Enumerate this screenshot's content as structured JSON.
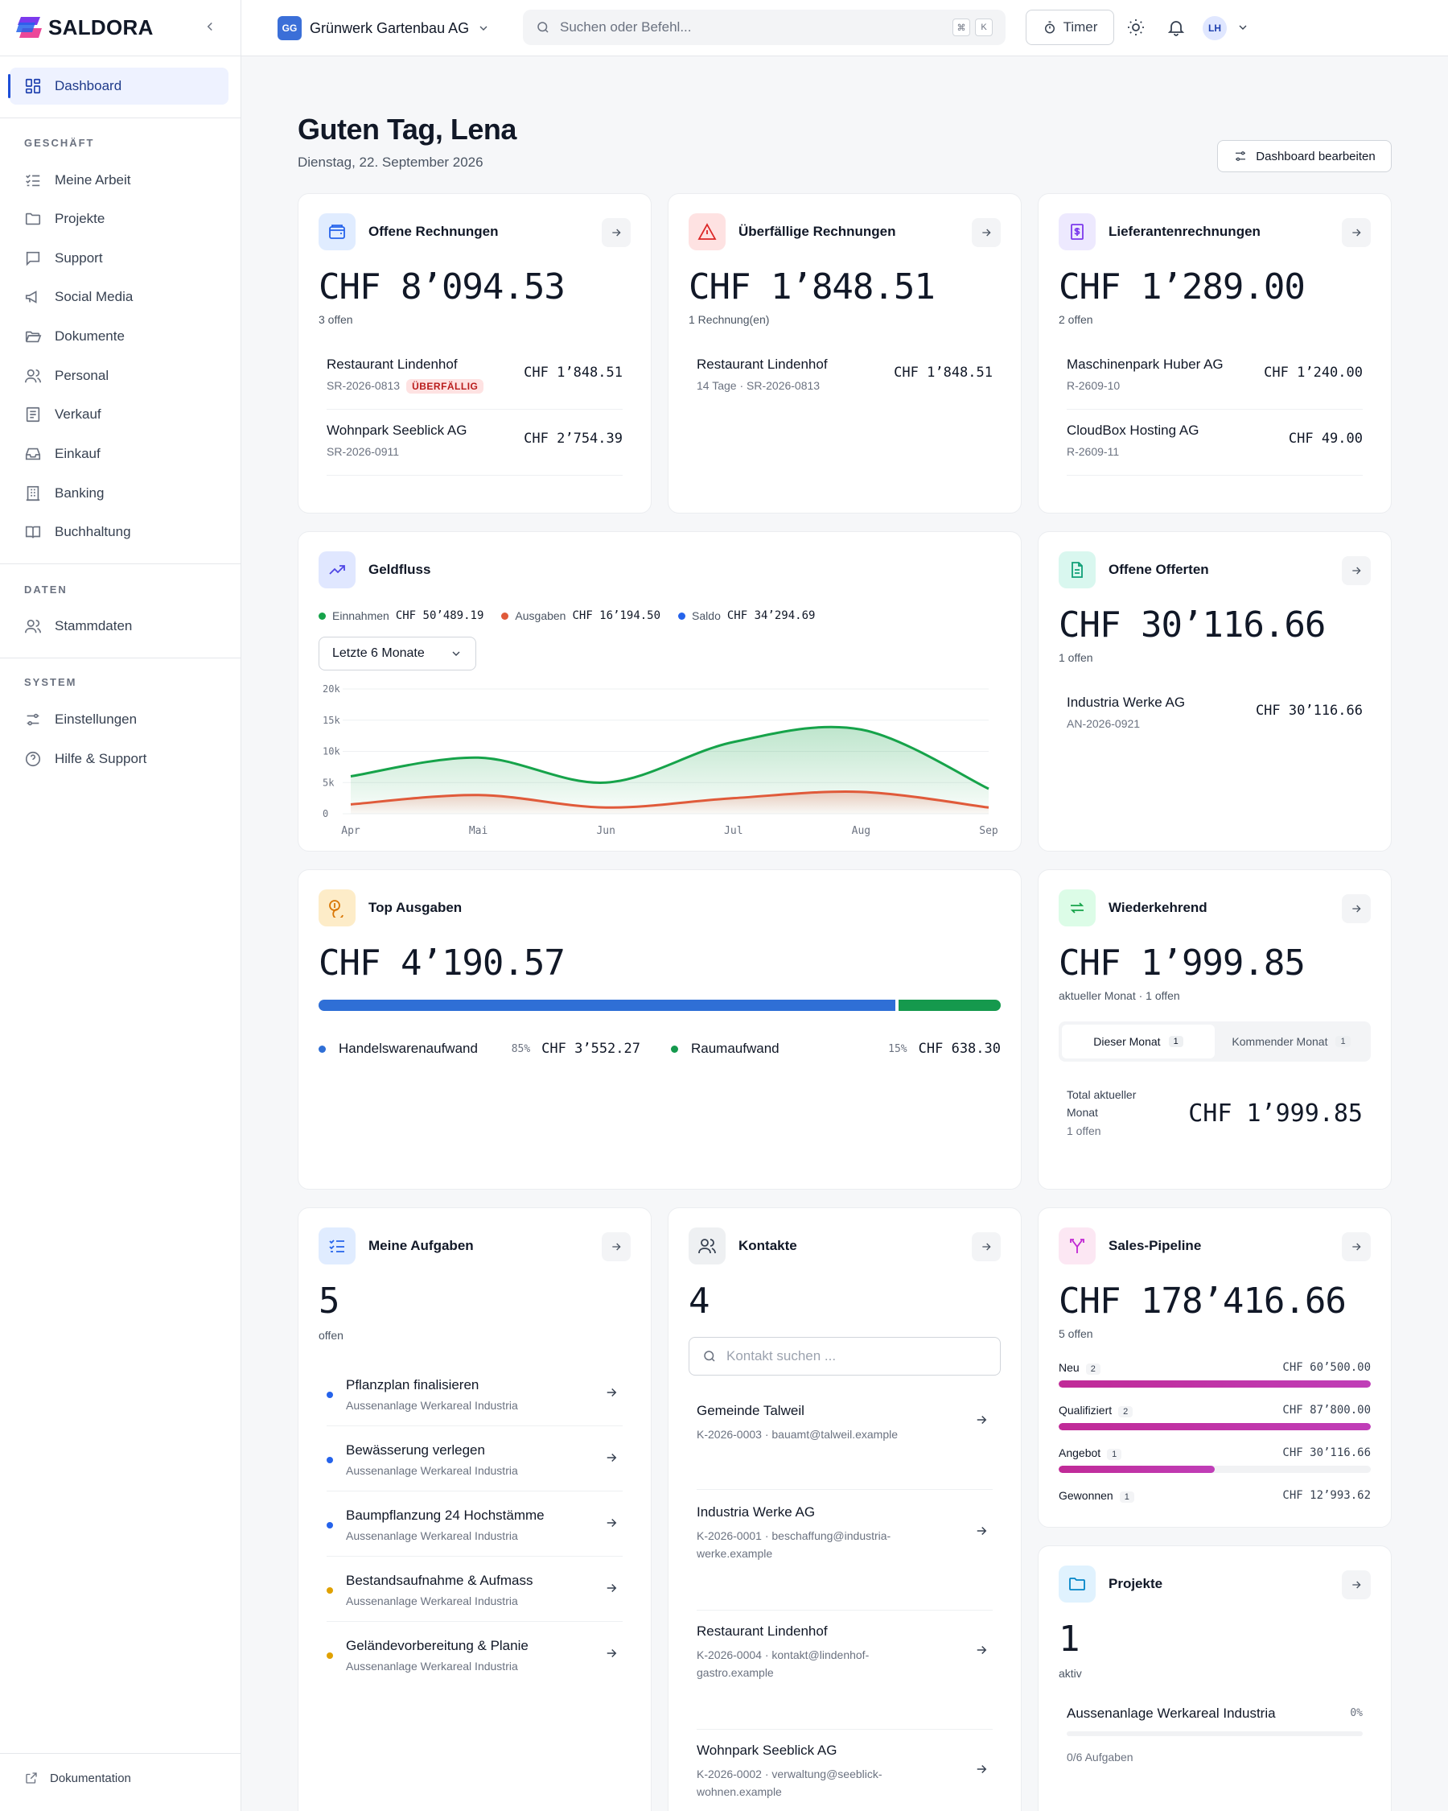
{
  "app": {
    "name": "SALDORA"
  },
  "sidebar": {
    "dashboard": "Dashboard",
    "sections": [
      {
        "title": "GESCHÄFT",
        "items": [
          "Meine Arbeit",
          "Projekte",
          "Support",
          "Social Media",
          "Dokumente",
          "Personal",
          "Verkauf",
          "Einkauf",
          "Banking",
          "Buchhaltung"
        ]
      },
      {
        "title": "DATEN",
        "items": [
          "Stammdaten"
        ]
      },
      {
        "title": "SYSTEM",
        "items": [
          "Einstellungen",
          "Hilfe & Support"
        ]
      }
    ],
    "footer": "Dokumentation"
  },
  "topbar": {
    "company_initials": "GG",
    "company": "Grünwerk Gartenbau AG",
    "search_placeholder": "Suchen oder Befehl...",
    "kbd1": "⌘",
    "kbd2": "K",
    "timer": "Timer",
    "avatar": "LH"
  },
  "header": {
    "greeting": "Guten Tag, Lena",
    "date": "Dienstag, 22. September 2026",
    "edit": "Dashboard bearbeiten"
  },
  "open_invoices": {
    "title": "Offene Rechnungen",
    "total": "CHF 8’094.53",
    "sub": "3 offen",
    "rows": [
      {
        "name": "Restaurant Lindenhof",
        "meta": "SR-2026-0813",
        "badge": "ÜBERFÄLLIG",
        "value": "CHF 1’848.51"
      },
      {
        "name": "Wohnpark Seeblick AG",
        "meta": "SR-2026-0911",
        "value": "CHF 2’754.39"
      }
    ]
  },
  "overdue": {
    "title": "Überfällige Rechnungen",
    "total": "CHF 1’848.51",
    "sub": "1 Rechnung(en)",
    "rows": [
      {
        "name": "Restaurant Lindenhof",
        "meta": "14 Tage · SR-2026-0813",
        "value": "CHF 1’848.51"
      }
    ]
  },
  "supplier": {
    "title": "Lieferantenrechnungen",
    "total": "CHF 1’289.00",
    "sub": "2 offen",
    "rows": [
      {
        "name": "Maschinenpark Huber AG",
        "meta": "R-2609-10",
        "value": "CHF 1’240.00"
      },
      {
        "name": "CloudBox Hosting AG",
        "meta": "R-2609-11",
        "value": "CHF 49.00"
      }
    ]
  },
  "cashflow": {
    "title": "Geldfluss",
    "legend": [
      {
        "label": "Einnahmen",
        "value": "CHF 50’489.19",
        "color": "#16a34a"
      },
      {
        "label": "Ausgaben",
        "value": "CHF 16’194.50",
        "color": "#e05a3a"
      },
      {
        "label": "Saldo",
        "value": "CHF 34’294.69",
        "color": "#2563eb"
      }
    ],
    "range": "Letzte 6 Monate"
  },
  "chart_data": {
    "type": "area",
    "categories": [
      "Apr",
      "Mai",
      "Jun",
      "Jul",
      "Aug",
      "Sep"
    ],
    "series": [
      {
        "name": "Einnahmen",
        "values": [
          6000,
          9000,
          5000,
          11500,
          13500,
          4000
        ]
      },
      {
        "name": "Ausgaben",
        "values": [
          1500,
          3000,
          1000,
          2500,
          3500,
          1000
        ]
      }
    ],
    "yticks": [
      "20k",
      "15k",
      "10k",
      "5k",
      "0"
    ],
    "ylim": [
      0,
      20000
    ]
  },
  "offers": {
    "title": "Offene Offerten",
    "total": "CHF 30’116.66",
    "sub": "1 offen",
    "rows": [
      {
        "name": "Industria Werke AG",
        "meta": "AN-2026-0921",
        "value": "CHF 30’116.66"
      }
    ]
  },
  "top_expenses": {
    "title": "Top Ausgaben",
    "total": "CHF 4’190.57",
    "items": [
      {
        "label": "Handelswarenaufwand",
        "pct": "85%",
        "share": 0.85,
        "value": "CHF 3’552.27",
        "color": "#2f6fd6"
      },
      {
        "label": "Raumaufwand",
        "pct": "15%",
        "share": 0.15,
        "value": "CHF 638.30",
        "color": "#15994d"
      }
    ]
  },
  "recurring": {
    "title": "Wiederkehrend",
    "total": "CHF 1’999.85",
    "sub": "aktueller Monat · 1 offen",
    "tab1": "Dieser Monat",
    "tab1_count": "1",
    "tab2": "Kommender Monat",
    "tab2_count": "1",
    "total_label": "Total aktueller Monat",
    "total_sub": "1 offen",
    "total_value": "CHF 1’999.85"
  },
  "tasks": {
    "title": "Meine Aufgaben",
    "count": "5",
    "sub": "offen",
    "items": [
      {
        "name": "Pflanzplan finalisieren",
        "project": "Aussenanlage Werkareal Industria",
        "color": "#2563eb"
      },
      {
        "name": "Bewässerung verlegen",
        "project": "Aussenanlage Werkareal Industria",
        "color": "#2563eb"
      },
      {
        "name": "Baumpflanzung 24 Hochstämme",
        "project": "Aussenanlage Werkareal Industria",
        "color": "#2563eb"
      },
      {
        "name": "Bestandsaufnahme & Aufmass",
        "project": "Aussenanlage Werkareal Industria",
        "color": "#e0a100"
      },
      {
        "name": "Geländevorbereitung & Planie",
        "project": "Aussenanlage Werkareal Industria",
        "color": "#e0a100"
      }
    ]
  },
  "contacts": {
    "title": "Kontakte",
    "count": "4",
    "search_placeholder": "Kontakt suchen ...",
    "items": [
      {
        "name": "Gemeinde Talweil",
        "meta": "K-2026-0003 · bauamt@talweil.example"
      },
      {
        "name": "Industria Werke AG",
        "meta": "K-2026-0001 · beschaffung@industria-werke.example"
      },
      {
        "name": "Restaurant Lindenhof",
        "meta": "K-2026-0004 · kontakt@lindenhof-gastro.example"
      },
      {
        "name": "Wohnpark Seeblick AG",
        "meta": "K-2026-0002 · verwaltung@seeblick-wohnen.example"
      }
    ]
  },
  "pipeline": {
    "title": "Sales-Pipeline",
    "total": "CHF 178’416.66",
    "sub": "5 offen",
    "stages": [
      {
        "label": "Neu",
        "count": "2",
        "value": "CHF 60’500.00",
        "share": 1.0
      },
      {
        "label": "Qualifiziert",
        "count": "2",
        "value": "CHF 87’800.00",
        "share": 1.0
      },
      {
        "label": "Angebot",
        "count": "1",
        "value": "CHF 30’116.66",
        "share": 0.5
      },
      {
        "label": "Gewonnen",
        "count": "1",
        "value": "CHF 12’993.62",
        "share": 0
      }
    ]
  },
  "projects": {
    "title": "Projekte",
    "count": "1",
    "sub": "aktiv",
    "item": {
      "name": "Aussenanlage Werkareal Industria",
      "pct": "0%",
      "tasks": "0/6 Aufgaben"
    }
  }
}
